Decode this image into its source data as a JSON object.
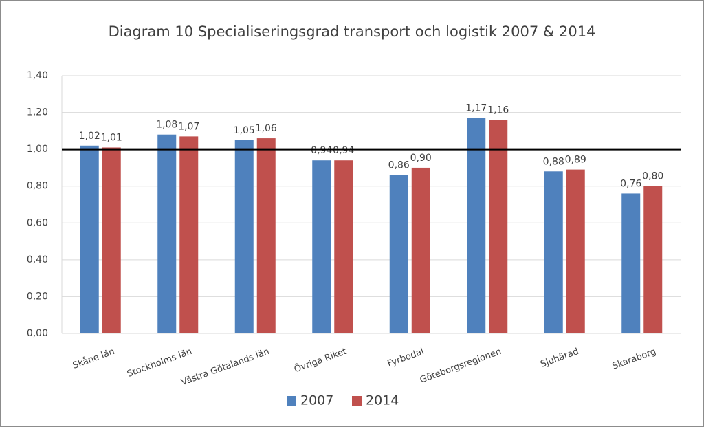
{
  "chart_data": {
    "type": "bar",
    "title": "Diagram 10 Specialiseringsgrad transport och logistik 2007 & 2014",
    "categories": [
      "Skåne län",
      "Stockholms län",
      "Västra Götalands län",
      "Övriga Riket",
      "Fyrbodal",
      "Göteborgsregionen",
      "Sjuhärad",
      "Skaraborg"
    ],
    "series": [
      {
        "name": "2007",
        "color": "#4f81bd",
        "values": [
          1.02,
          1.08,
          1.05,
          0.94,
          0.86,
          1.17,
          0.88,
          0.76
        ],
        "value_labels": [
          "1,02",
          "1,08",
          "1,05",
          "0,94",
          "0,86",
          "1,17",
          "0,88",
          "0,76"
        ]
      },
      {
        "name": "2014",
        "color": "#c0504d",
        "values": [
          1.01,
          1.07,
          1.06,
          0.94,
          0.9,
          1.16,
          0.89,
          0.8
        ],
        "value_labels": [
          "1,01",
          "1,07",
          "1,06",
          "0,94",
          "0,90",
          "1,16",
          "0,89",
          "0,80"
        ]
      }
    ],
    "ylim": [
      0,
      1.4
    ],
    "yticks": [
      {
        "value": 0,
        "label": "0,00"
      },
      {
        "value": 0.2,
        "label": "0,20"
      },
      {
        "value": 0.4,
        "label": "0,40"
      },
      {
        "value": 0.6,
        "label": "0,60"
      },
      {
        "value": 0.8,
        "label": "0,80"
      },
      {
        "value": 1.0,
        "label": "1,00"
      },
      {
        "value": 1.2,
        "label": "1,20"
      },
      {
        "value": 1.4,
        "label": "1,40"
      }
    ],
    "grid": true,
    "reference_line": 1,
    "legend": "bottom"
  }
}
